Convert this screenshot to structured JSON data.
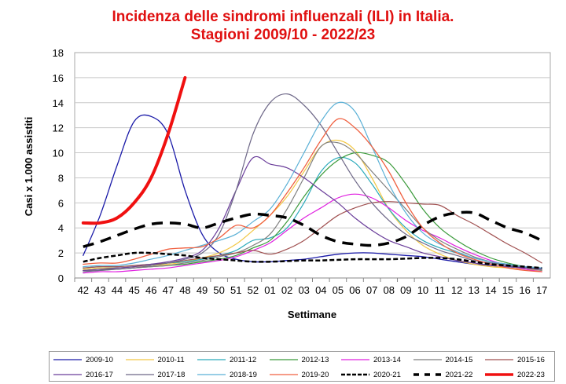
{
  "chart_data": {
    "type": "line",
    "title": "Incidenza delle sindromi influenzali (ILI) in Italia.",
    "subtitle": "Stagioni 2009/10 - 2022/23",
    "xlabel": "Settimane",
    "ylabel": "Casi x 1.000 assistiti",
    "ylim": [
      0,
      18
    ],
    "yticks": [
      0,
      2,
      4,
      6,
      8,
      10,
      12,
      14,
      16,
      18
    ],
    "grid": true,
    "legend": "bottom",
    "categories": [
      "42",
      "43",
      "44",
      "45",
      "46",
      "47",
      "48",
      "49",
      "50",
      "51",
      "52",
      "01",
      "02",
      "03",
      "04",
      "05",
      "06",
      "07",
      "08",
      "09",
      "10",
      "11",
      "12",
      "13",
      "14",
      "15",
      "16",
      "17"
    ],
    "series": [
      {
        "name": "2009-10",
        "color": "#1a1aa8",
        "style": "solid",
        "width": 1.3,
        "values": [
          1.8,
          5.0,
          9.0,
          12.5,
          12.9,
          11.5,
          7.0,
          3.5,
          2.0,
          1.5,
          1.3,
          1.3,
          1.4,
          1.5,
          1.7,
          1.9,
          2.0,
          2.0,
          1.9,
          1.8,
          1.7,
          1.5,
          1.3,
          1.1,
          1.0,
          0.9,
          0.8,
          0.8
        ]
      },
      {
        "name": "2010-11",
        "color": "#f2c744",
        "style": "solid",
        "width": 1.2,
        "values": [
          0.7,
          0.8,
          0.8,
          0.9,
          1.0,
          1.1,
          1.3,
          1.6,
          2.0,
          2.7,
          3.8,
          5.0,
          6.5,
          8.5,
          10.5,
          11.0,
          10.2,
          8.0,
          5.5,
          3.8,
          2.6,
          1.9,
          1.4,
          1.1,
          0.9,
          0.8,
          0.7,
          0.6
        ]
      },
      {
        "name": "2011-12",
        "color": "#2aaabb",
        "style": "solid",
        "width": 1.2,
        "values": [
          0.8,
          0.9,
          0.9,
          1.0,
          1.1,
          1.2,
          1.3,
          1.5,
          1.8,
          2.2,
          3.0,
          3.2,
          4.0,
          6.0,
          8.5,
          9.6,
          9.2,
          7.5,
          5.5,
          4.0,
          3.0,
          2.4,
          2.0,
          1.6,
          1.3,
          1.1,
          0.9,
          0.8
        ]
      },
      {
        "name": "2012-13",
        "color": "#3a9a3a",
        "style": "solid",
        "width": 1.2,
        "values": [
          0.6,
          0.7,
          0.7,
          0.8,
          0.9,
          1.0,
          1.1,
          1.3,
          1.5,
          1.8,
          2.4,
          3.0,
          4.5,
          6.5,
          8.2,
          9.4,
          10.0,
          9.8,
          9.2,
          7.5,
          5.5,
          4.0,
          3.0,
          2.2,
          1.6,
          1.2,
          0.9,
          0.7
        ]
      },
      {
        "name": "2013-14",
        "color": "#e020e0",
        "style": "solid",
        "width": 1.2,
        "values": [
          0.4,
          0.5,
          0.5,
          0.6,
          0.7,
          0.8,
          1.0,
          1.2,
          1.4,
          1.7,
          2.2,
          2.8,
          3.8,
          4.8,
          5.6,
          6.4,
          6.7,
          6.4,
          5.6,
          4.6,
          3.8,
          3.2,
          2.5,
          1.9,
          1.4,
          1.0,
          0.7,
          0.5
        ]
      },
      {
        "name": "2014-15",
        "color": "#7f7f7f",
        "style": "solid",
        "width": 1.2,
        "values": [
          0.6,
          0.6,
          0.7,
          0.8,
          0.9,
          1.0,
          1.2,
          1.4,
          1.7,
          2.0,
          2.6,
          3.5,
          5.5,
          8.0,
          10.5,
          10.8,
          10.0,
          8.5,
          7.0,
          5.5,
          4.0,
          3.0,
          2.3,
          1.7,
          1.3,
          1.0,
          0.8,
          0.6
        ]
      },
      {
        "name": "2015-16",
        "color": "#a05050",
        "style": "solid",
        "width": 1.2,
        "values": [
          0.8,
          0.9,
          0.9,
          1.0,
          1.1,
          1.2,
          1.4,
          1.6,
          1.8,
          2.0,
          2.2,
          1.9,
          2.3,
          3.0,
          4.0,
          5.0,
          5.6,
          6.0,
          6.1,
          6.0,
          5.9,
          5.8,
          5.0,
          4.3,
          3.5,
          2.7,
          2.0,
          1.2
        ]
      },
      {
        "name": "2016-17",
        "color": "#6a3d9a",
        "style": "solid",
        "width": 1.2,
        "values": [
          0.6,
          0.7,
          0.8,
          0.9,
          1.1,
          1.3,
          1.6,
          2.2,
          4.0,
          7.0,
          9.6,
          9.1,
          8.8,
          8.0,
          7.0,
          6.0,
          4.8,
          3.8,
          3.0,
          2.5,
          2.0,
          1.7,
          1.4,
          1.2,
          1.0,
          0.9,
          0.8,
          0.7
        ]
      },
      {
        "name": "2017-18",
        "color": "#6e6888",
        "style": "solid",
        "width": 1.2,
        "values": [
          0.5,
          0.6,
          0.7,
          0.8,
          1.0,
          1.2,
          1.5,
          2.0,
          3.5,
          7.0,
          11.5,
          14.0,
          14.7,
          13.8,
          12.2,
          10.0,
          7.8,
          6.0,
          4.6,
          3.5,
          2.8,
          2.2,
          1.8,
          1.4,
          1.2,
          1.0,
          0.9,
          0.8
        ]
      },
      {
        "name": "2018-19",
        "color": "#5ab0d6",
        "style": "solid",
        "width": 1.2,
        "values": [
          0.9,
          1.0,
          1.0,
          1.2,
          1.5,
          1.8,
          2.2,
          2.6,
          3.0,
          3.5,
          4.5,
          5.5,
          7.5,
          10.0,
          12.5,
          14.0,
          13.3,
          10.5,
          7.5,
          5.2,
          3.6,
          2.7,
          2.1,
          1.6,
          1.3,
          1.1,
          0.9,
          0.8
        ]
      },
      {
        "name": "2019-20",
        "color": "#f06040",
        "style": "solid",
        "width": 1.3,
        "values": [
          1.1,
          1.2,
          1.2,
          1.5,
          1.9,
          2.3,
          2.4,
          2.5,
          3.2,
          4.2,
          4.0,
          5.0,
          6.8,
          8.8,
          11.0,
          12.7,
          12.0,
          10.5,
          8.5,
          6.0,
          4.0,
          2.8,
          2.0,
          1.5,
          1.1,
          0.8,
          0.6,
          0.5
        ]
      },
      {
        "name": "2020-21",
        "color": "#000000",
        "style": "short-dash",
        "width": 2.5,
        "values": [
          1.3,
          1.6,
          1.8,
          2.0,
          2.0,
          1.9,
          1.8,
          1.6,
          1.5,
          1.4,
          1.3,
          1.3,
          1.35,
          1.4,
          1.4,
          1.45,
          1.5,
          1.5,
          1.5,
          1.55,
          1.6,
          1.6,
          1.5,
          1.3,
          1.1,
          1.0,
          0.9,
          0.8
        ]
      },
      {
        "name": "2021-22",
        "color": "#000000",
        "style": "long-dash",
        "width": 3.5,
        "values": [
          2.5,
          2.9,
          3.4,
          3.9,
          4.3,
          4.4,
          4.3,
          4.0,
          4.4,
          4.8,
          5.1,
          5.0,
          4.8,
          4.2,
          3.4,
          2.9,
          2.7,
          2.6,
          2.8,
          3.3,
          4.2,
          4.9,
          5.2,
          5.2,
          4.6,
          4.0,
          3.6,
          3.0
        ]
      },
      {
        "name": "2022-23",
        "color": "#f01010",
        "style": "solid",
        "width": 4,
        "values": [
          4.4,
          4.4,
          4.8,
          6.0,
          8.0,
          11.5,
          16.0,
          null,
          null,
          null,
          null,
          null,
          null,
          null,
          null,
          null,
          null,
          null,
          null,
          null,
          null,
          null,
          null,
          null,
          null,
          null,
          null,
          null
        ]
      }
    ]
  }
}
